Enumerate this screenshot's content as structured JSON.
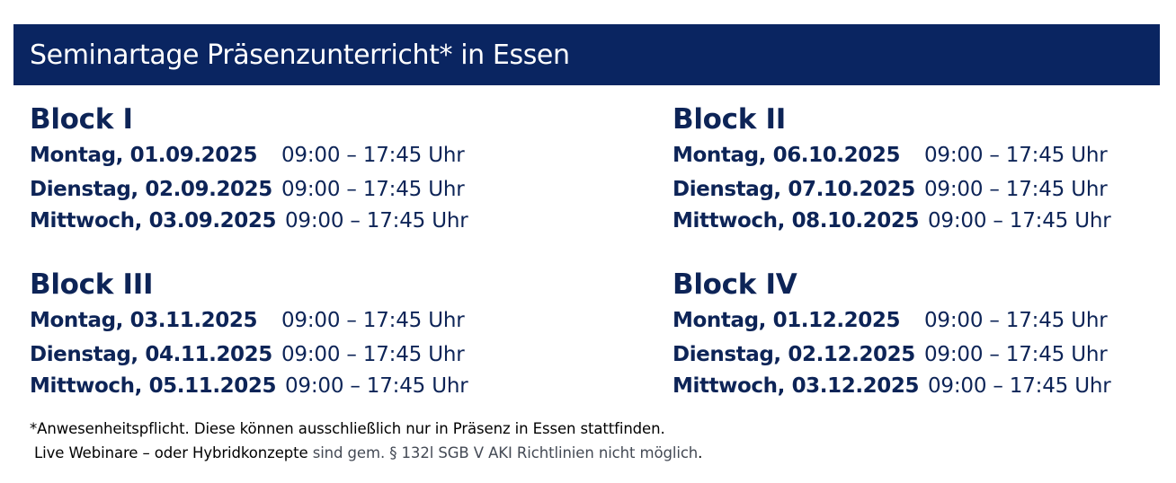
{
  "header": {
    "title": "Seminartage Präsenzunterricht* in Essen"
  },
  "blocks": [
    {
      "title": "Block I",
      "sessions": [
        {
          "date": "Montag, 01.09.2025",
          "time": "09:00 – 17:45 Uhr"
        },
        {
          "date": "Dienstag, 02.09.2025",
          "time": "09:00 – 17:45 Uhr"
        },
        {
          "date": "Mittwoch, 03.09.2025",
          "time": "09:00 – 17:45 Uhr"
        }
      ]
    },
    {
      "title": "Block II",
      "sessions": [
        {
          "date": "Montag, 06.10.2025",
          "time": "09:00 – 17:45 Uhr"
        },
        {
          "date": "Dienstag, 07.10.2025",
          "time": "09:00 – 17:45 Uhr"
        },
        {
          "date": "Mittwoch, 08.10.2025",
          "time": "09:00 – 17:45 Uhr"
        }
      ]
    },
    {
      "title": "Block III",
      "sessions": [
        {
          "date": "Montag, 03.11.2025",
          "time": "09:00 – 17:45 Uhr"
        },
        {
          "date": "Dienstag, 04.11.2025",
          "time": "09:00 – 17:45 Uhr"
        },
        {
          "date": "Mittwoch, 05.11.2025",
          "time": "09:00 – 17:45 Uhr"
        }
      ]
    },
    {
      "title": "Block IV",
      "sessions": [
        {
          "date": "Montag, 01.12.2025",
          "time": "09:00 – 17:45 Uhr"
        },
        {
          "date": "Dienstag, 02.12.2025",
          "time": "09:00 – 17:45 Uhr"
        },
        {
          "date": "Mittwoch, 03.12.2025",
          "time": "09:00 – 17:45 Uhr"
        }
      ]
    }
  ],
  "footnote": {
    "line1": "*Anwesenheitspflicht. Diese können ausschließlich nur in Präsenz in Essen stattfinden.",
    "line2_part1": "Live Webinare – oder Hybridkonzepte",
    "line2_part2": " sind gem. § 132l SGB V  AKI Richtlinien nicht möglich",
    "line2_part3": "."
  },
  "colors": {
    "header_background": "#0a2561",
    "header_text": "#ffffff",
    "body_text": "#0d2457",
    "footnote_text": "#000000",
    "footnote_muted": "#444a55"
  }
}
